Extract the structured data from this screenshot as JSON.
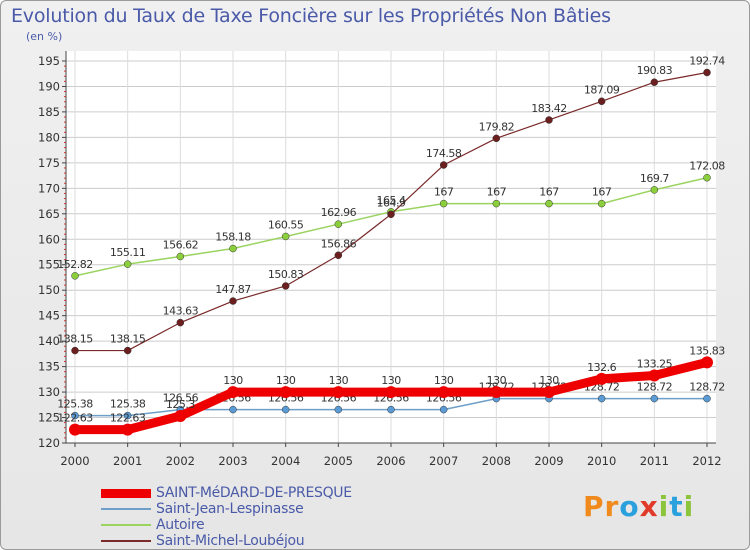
{
  "header": {
    "title": "Evolution du Taux de Taxe Foncière sur les Propriétés Non Bâties",
    "unit": "(en %)"
  },
  "logo": {
    "text": "Proxiti",
    "letters": [
      "P",
      "r",
      "o",
      "x",
      "i",
      "t",
      "i"
    ],
    "colors": [
      "#f08a1c",
      "#f08a1c",
      "#2aa0dc",
      "#e23a2a",
      "#8cc43c",
      "#2aa0dc",
      "#8cc43c"
    ]
  },
  "chart_data": {
    "type": "line",
    "x": [
      "2000",
      "2001",
      "2002",
      "2003",
      "2004",
      "2005",
      "2006",
      "2007",
      "2008",
      "2009",
      "2010",
      "2011",
      "2012"
    ],
    "ylim": [
      120,
      195
    ],
    "yticks": [
      120,
      125,
      130,
      135,
      140,
      145,
      150,
      155,
      160,
      165,
      170,
      175,
      180,
      185,
      190,
      195
    ],
    "grid": true,
    "legend_position": "bottom-left",
    "series": [
      {
        "name": "SAINT-MéDARD-DE-PRESQUE",
        "color": "#ee0000",
        "values": [
          122.63,
          122.63,
          125.3,
          130,
          130,
          130,
          130,
          130,
          130,
          130,
          132.6,
          133.25,
          135.83
        ],
        "labels": [
          "122.63",
          "122.63",
          "125.3",
          "130",
          "130",
          "130",
          "130",
          "130",
          "130",
          "130",
          "132.6",
          "133.25",
          "135.83"
        ]
      },
      {
        "name": "Saint-Jean-Lespinasse",
        "color": "#6e9fc8",
        "values": [
          125.38,
          125.38,
          126.56,
          126.56,
          126.56,
          126.56,
          126.56,
          126.56,
          128.72,
          128.72,
          128.72,
          128.72,
          128.72
        ],
        "labels": [
          "125.38",
          "125.38",
          "126.56",
          "126.56",
          "126.56",
          "126.56",
          "126.56",
          "126.56",
          "128.72",
          "128.72",
          "128.72",
          "128.72",
          "128.72"
        ]
      },
      {
        "name": "Autoire",
        "color": "#9bd35f",
        "values": [
          152.82,
          155.11,
          156.62,
          158.18,
          160.55,
          162.96,
          165.4,
          167,
          167,
          167,
          167,
          169.7,
          172.08
        ],
        "labels": [
          "152.82",
          "155.11",
          "156.62",
          "158.18",
          "160.55",
          "162.96",
          "165.4",
          "167",
          "167",
          "167",
          "167",
          "169.7",
          "172.08"
        ]
      },
      {
        "name": "Saint-Michel-Loubéjou",
        "color": "#7a2a2a",
        "values": [
          138.15,
          138.15,
          143.63,
          147.87,
          150.83,
          156.86,
          164.9,
          174.58,
          179.82,
          183.42,
          187.09,
          190.83,
          192.74
        ],
        "labels": [
          "138.15",
          "138.15",
          "143.63",
          "147.87",
          "150.83",
          "156.86",
          "164.9",
          "174.58",
          "179.82",
          "183.42",
          "187.09",
          "190.83",
          "192.74"
        ]
      }
    ]
  }
}
